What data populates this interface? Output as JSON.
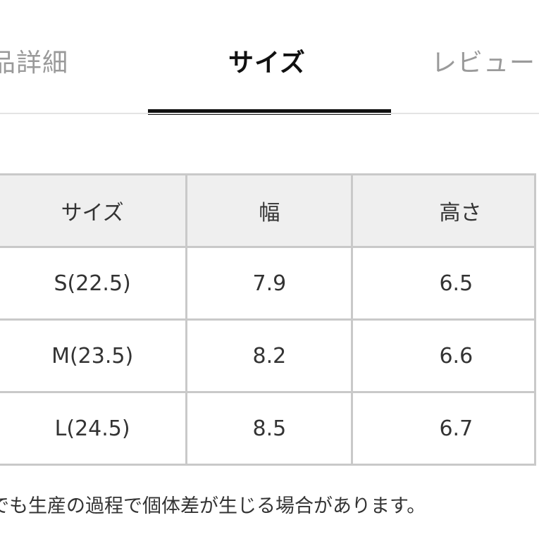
{
  "tabs": {
    "items": [
      {
        "label": "品詳細",
        "active": false
      },
      {
        "label": "サイズ",
        "active": true
      },
      {
        "label": "レビュー",
        "active": false
      }
    ]
  },
  "size_table": {
    "headers": [
      "サイズ",
      "幅",
      "高さ"
    ],
    "rows": [
      {
        "size": "S(22.5)",
        "width": "7.9",
        "height": "6.5"
      },
      {
        "size": "M(23.5)",
        "width": "8.2",
        "height": "6.6"
      },
      {
        "size": "L(24.5)",
        "width": "8.5",
        "height": "6.7"
      }
    ]
  },
  "note": "でも生産の過程で個体差が生じる場合があります。",
  "colors": {
    "active_tab": "#111111",
    "inactive_tab": "#9a9a9a",
    "table_border": "#c9c9c9",
    "header_bg": "#efefef"
  }
}
